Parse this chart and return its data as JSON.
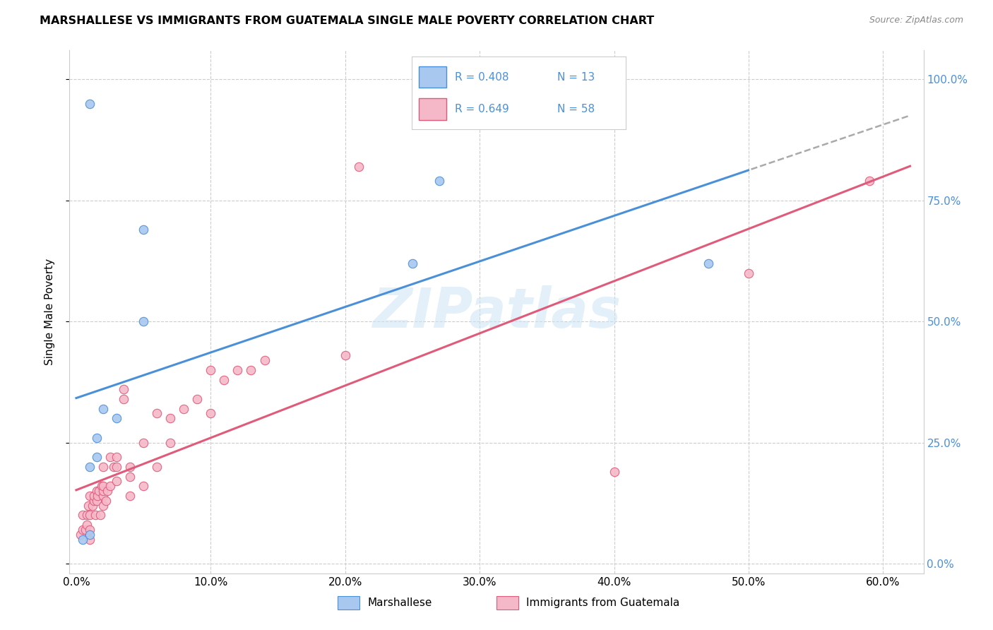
{
  "title": "MARSHALLESE VS IMMIGRANTS FROM GUATEMALA SINGLE MALE POVERTY CORRELATION CHART",
  "source": "Source: ZipAtlas.com",
  "xlabel_ticks": [
    "0.0%",
    "10.0%",
    "20.0%",
    "30.0%",
    "40.0%",
    "50.0%",
    "60.0%"
  ],
  "xlabel_vals": [
    0.0,
    0.1,
    0.2,
    0.3,
    0.4,
    0.5,
    0.6
  ],
  "ylabel_ticks": [
    "0.0%",
    "25.0%",
    "50.0%",
    "75.0%",
    "100.0%"
  ],
  "ylabel_vals": [
    0.0,
    0.25,
    0.5,
    0.75,
    1.0
  ],
  "ylabel_label": "Single Male Poverty",
  "legend_label1": "Marshallese",
  "legend_label2": "Immigrants from Guatemala",
  "R1": "0.408",
  "N1": "13",
  "R2": "0.649",
  "N2": "58",
  "color1": "#a8c8f0",
  "color2": "#f5b8c8",
  "line_color1": "#4a90d9",
  "line_color2": "#e05a7a",
  "watermark": "ZIPatlas",
  "xlim": [
    -0.005,
    0.63
  ],
  "ylim": [
    -0.02,
    1.06
  ],
  "marshallese_x": [
    0.005,
    0.01,
    0.01,
    0.01,
    0.015,
    0.015,
    0.02,
    0.03,
    0.05,
    0.05,
    0.25,
    0.27,
    0.47
  ],
  "marshallese_y": [
    0.05,
    0.06,
    0.2,
    0.95,
    0.22,
    0.26,
    0.32,
    0.3,
    0.5,
    0.69,
    0.62,
    0.79,
    0.62
  ],
  "guatemala_x": [
    0.003,
    0.005,
    0.005,
    0.007,
    0.008,
    0.008,
    0.009,
    0.01,
    0.01,
    0.01,
    0.01,
    0.012,
    0.013,
    0.013,
    0.014,
    0.015,
    0.015,
    0.016,
    0.017,
    0.018,
    0.019,
    0.02,
    0.02,
    0.02,
    0.02,
    0.02,
    0.022,
    0.023,
    0.025,
    0.025,
    0.028,
    0.03,
    0.03,
    0.03,
    0.035,
    0.035,
    0.04,
    0.04,
    0.04,
    0.05,
    0.05,
    0.06,
    0.06,
    0.07,
    0.07,
    0.08,
    0.09,
    0.1,
    0.1,
    0.11,
    0.12,
    0.13,
    0.14,
    0.2,
    0.21,
    0.4,
    0.5,
    0.59
  ],
  "guatemala_y": [
    0.06,
    0.07,
    0.1,
    0.07,
    0.08,
    0.1,
    0.12,
    0.05,
    0.07,
    0.1,
    0.14,
    0.12,
    0.13,
    0.14,
    0.1,
    0.13,
    0.15,
    0.14,
    0.15,
    0.1,
    0.16,
    0.12,
    0.14,
    0.15,
    0.16,
    0.2,
    0.13,
    0.15,
    0.16,
    0.22,
    0.2,
    0.17,
    0.2,
    0.22,
    0.34,
    0.36,
    0.14,
    0.18,
    0.2,
    0.16,
    0.25,
    0.2,
    0.31,
    0.25,
    0.3,
    0.32,
    0.34,
    0.31,
    0.4,
    0.38,
    0.4,
    0.4,
    0.42,
    0.43,
    0.82,
    0.19,
    0.6,
    0.79
  ]
}
